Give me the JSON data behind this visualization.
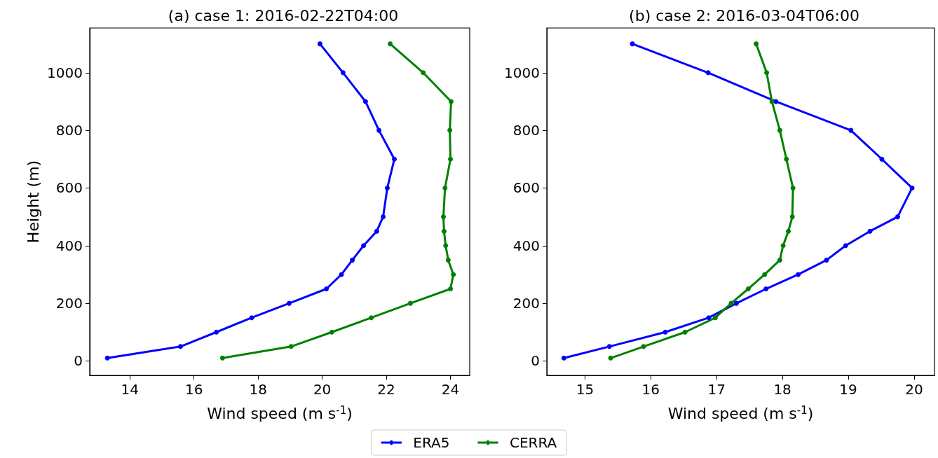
{
  "chart_data": [
    {
      "type": "line",
      "title": "(a) case 1: 2016-02-22T04:00",
      "xlabel": "Wind speed (m s$^{-1}$)",
      "ylabel": "Height (m)",
      "orientation": "horizontal",
      "x": [
        10,
        50,
        100,
        150,
        200,
        250,
        300,
        350,
        400,
        450,
        500,
        600,
        700,
        800,
        900,
        1000,
        1100
      ],
      "series": [
        {
          "name": "ERA5",
          "color": "#0000ff",
          "values": [
            13.3,
            15.58,
            16.7,
            17.8,
            18.97,
            20.13,
            20.6,
            20.94,
            21.29,
            21.7,
            21.9,
            22.03,
            22.25,
            21.77,
            21.35,
            20.65,
            19.93
          ]
        },
        {
          "name": "CERRA",
          "color": "#008000",
          "values": [
            16.89,
            19.03,
            20.3,
            21.53,
            22.75,
            24.0,
            24.09,
            23.93,
            23.85,
            23.8,
            23.78,
            23.83,
            24.0,
            23.98,
            24.02,
            23.15,
            22.12
          ]
        }
      ],
      "xlim": [
        12.75,
        24.6
      ],
      "xticks": [
        14,
        16,
        18,
        20,
        22,
        24
      ],
      "ylim": [
        -50,
        1155
      ],
      "yticks": [
        0,
        200,
        400,
        600,
        800,
        1000
      ],
      "grid": false,
      "legend": "bottom",
      "marker": "circle",
      "line_style": "solid"
    },
    {
      "type": "line",
      "title": "(b) case 2: 2016-03-04T06:00",
      "xlabel": "Wind speed (m s$^{-1}$)",
      "orientation": "horizontal",
      "x": [
        10,
        50,
        100,
        150,
        200,
        250,
        300,
        350,
        400,
        450,
        500,
        600,
        700,
        800,
        900,
        1000,
        1100
      ],
      "series": [
        {
          "name": "ERA5",
          "color": "#0000ff",
          "values": [
            14.68,
            15.37,
            16.22,
            16.88,
            17.3,
            17.75,
            18.24,
            18.67,
            18.96,
            19.33,
            19.75,
            19.97,
            19.51,
            19.04,
            17.9,
            16.87,
            15.72
          ]
        },
        {
          "name": "CERRA",
          "color": "#008000",
          "values": [
            15.39,
            15.89,
            16.52,
            16.98,
            17.22,
            17.48,
            17.73,
            17.96,
            18.01,
            18.09,
            18.15,
            18.16,
            18.06,
            17.96,
            17.84,
            17.76,
            17.6
          ]
        }
      ],
      "xlim": [
        14.42,
        20.31
      ],
      "xticks": [
        15,
        16,
        17,
        18,
        19,
        20
      ],
      "ylim": [
        -50,
        1155
      ],
      "yticks": [
        0,
        200,
        400,
        600,
        800,
        1000
      ],
      "grid": false,
      "legend": false,
      "marker": "circle",
      "line_style": "solid"
    }
  ]
}
